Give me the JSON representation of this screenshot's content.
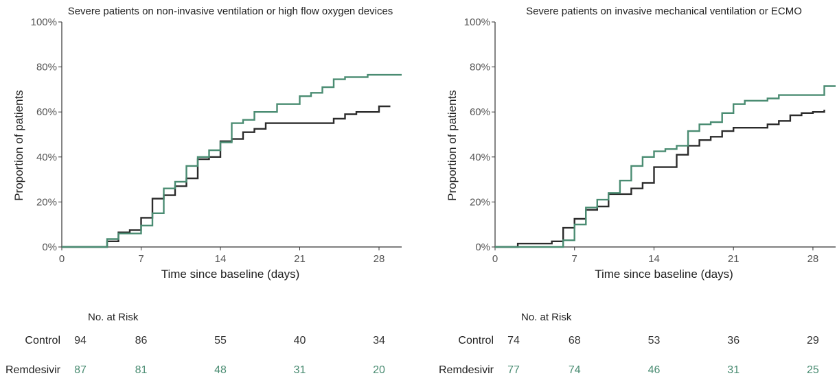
{
  "chart_data": [
    {
      "type": "line",
      "step": true,
      "title": "Severe patients on non-invasive ventilation or high flow oxygen devices",
      "xlabel": "Time since baseline (days)",
      "ylabel": "Proportion of patients",
      "xlim": [
        0,
        30
      ],
      "ylim": [
        0,
        100
      ],
      "xticks": [
        0,
        7,
        14,
        21,
        28
      ],
      "yticks": [
        0,
        20,
        40,
        60,
        80,
        100
      ],
      "ytick_labels": [
        "0%",
        "20%",
        "40%",
        "60%",
        "80%",
        "100%"
      ],
      "grid": false,
      "series": [
        {
          "color": "#2b2b2b",
          "x": [
            0,
            4,
            5,
            6,
            7,
            8,
            9,
            10,
            11,
            12,
            13,
            14,
            15,
            16,
            17,
            18,
            24,
            25,
            26,
            28,
            29
          ],
          "y": [
            0,
            2.5,
            6.5,
            7.5,
            13,
            21.5,
            23,
            27,
            30.5,
            39,
            40,
            47,
            48,
            51,
            52.5,
            55,
            57,
            59,
            60,
            62.5,
            62.5
          ]
        },
        {
          "color": "#4a8c72",
          "x": [
            0,
            4,
            5,
            7,
            8,
            9,
            10,
            11,
            12,
            13,
            14,
            15,
            16,
            17,
            19,
            21,
            22,
            23,
            24,
            25,
            27,
            30
          ],
          "y": [
            0,
            3.5,
            6,
            9.5,
            15,
            26,
            29,
            36,
            40,
            43,
            46.5,
            55,
            56.5,
            60,
            63.5,
            67,
            68.5,
            71,
            74.5,
            75.5,
            76.5,
            76.5
          ]
        }
      ]
    },
    {
      "type": "line",
      "step": true,
      "title": "Severe patients on invasive mechanical ventilation or ECMO",
      "xlabel": "Time since baseline (days)",
      "ylabel": "Proportion of patients",
      "xlim": [
        0,
        30
      ],
      "ylim": [
        0,
        100
      ],
      "xticks": [
        0,
        7,
        14,
        21,
        28
      ],
      "yticks": [
        0,
        20,
        40,
        60,
        80,
        100
      ],
      "ytick_labels": [
        "0%",
        "20%",
        "40%",
        "60%",
        "80%",
        "100%"
      ],
      "grid": false,
      "series": [
        {
          "color": "#2b2b2b",
          "x": [
            0,
            2,
            5,
            6,
            7,
            8,
            9,
            10,
            12,
            13,
            14,
            16,
            17,
            18,
            19,
            20,
            21,
            24,
            25,
            26,
            27,
            28,
            29
          ],
          "y": [
            0,
            1.5,
            2.5,
            8.5,
            12.5,
            16.5,
            18,
            23.5,
            26,
            28.5,
            35.5,
            41,
            45,
            47.5,
            49,
            51.5,
            53,
            54.5,
            56,
            58.5,
            59.5,
            60,
            61
          ]
        },
        {
          "color": "#4a8c72",
          "x": [
            0,
            6,
            7,
            8,
            9,
            10,
            11,
            12,
            13,
            14,
            15,
            16,
            17,
            18,
            19,
            20,
            21,
            22,
            24,
            25,
            29,
            30
          ],
          "y": [
            0,
            3,
            10,
            17.5,
            21,
            24,
            29.5,
            36,
            40,
            42.5,
            43.5,
            45,
            51.5,
            54.5,
            55.5,
            59.5,
            63.5,
            65,
            66,
            67.5,
            71.5,
            71.5
          ]
        }
      ]
    }
  ],
  "risk_tables": [
    {
      "heading": "No. at Risk",
      "rows": [
        {
          "label": "Control",
          "color": "#333333",
          "values": [
            94,
            86,
            55,
            40,
            34
          ]
        },
        {
          "label": "Remdesivir",
          "color": "#4a8c72",
          "values": [
            87,
            81,
            48,
            31,
            20
          ]
        }
      ]
    },
    {
      "heading": "No. at Risk",
      "rows": [
        {
          "label": "Control",
          "color": "#333333",
          "values": [
            74,
            68,
            53,
            36,
            29
          ]
        },
        {
          "label": "Remdesivir",
          "color": "#4a8c72",
          "values": [
            77,
            74,
            46,
            31,
            25
          ]
        }
      ]
    }
  ]
}
